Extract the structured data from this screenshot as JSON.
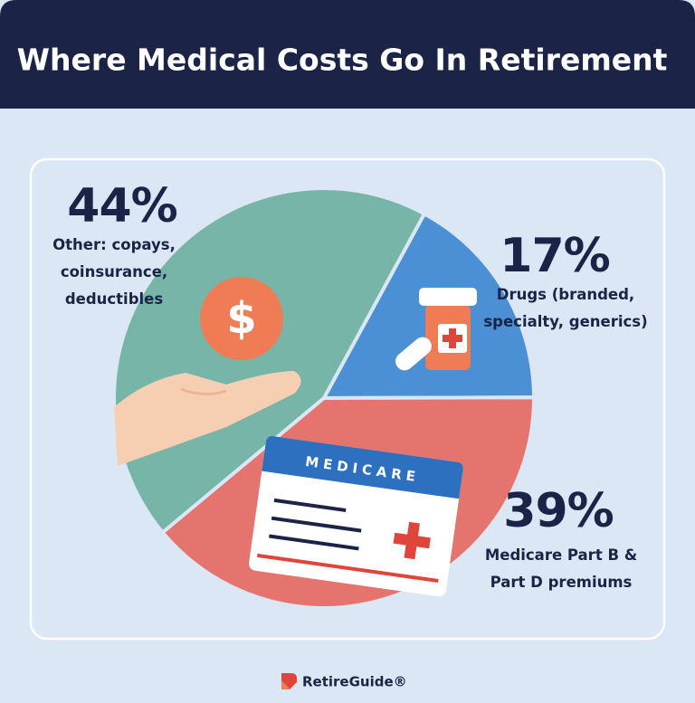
{
  "chart_data": {
    "type": "pie",
    "title": "Where Medical Costs Go In Retirement",
    "categories": [
      "Other: copays, coinsurance, deductibles",
      "Drugs (branded, specialty, generics)",
      "Medicare Part B & Part D premiums"
    ],
    "values": [
      44,
      17,
      39
    ],
    "value_labels": [
      "44%",
      "17%",
      "39%"
    ],
    "colors": [
      "#78b5a9",
      "#4b8fd5",
      "#e4746d"
    ]
  },
  "illustration": {
    "card_text": "MEDICARE"
  },
  "footer": {
    "brand": "RetireGuide®"
  }
}
